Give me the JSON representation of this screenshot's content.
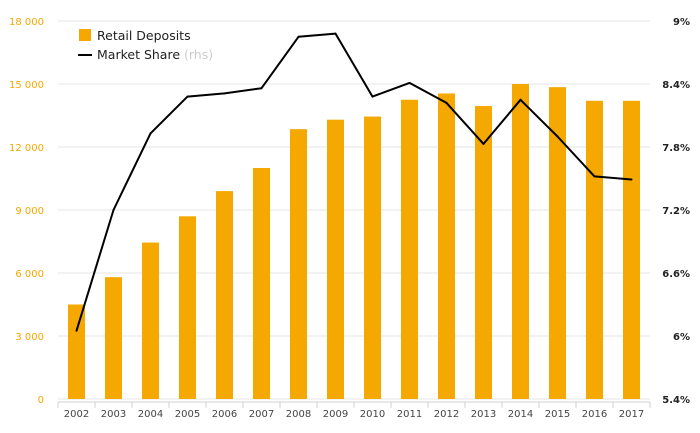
{
  "chart_data": {
    "type": "bar",
    "categories": [
      "2002",
      "2003",
      "2004",
      "2005",
      "2006",
      "2007",
      "2008",
      "2009",
      "2010",
      "2011",
      "2012",
      "2013",
      "2014",
      "2015",
      "2016",
      "2017"
    ],
    "series": [
      {
        "name": "Retail Deposits",
        "type": "bar",
        "axis": "left",
        "color": "#f5a800",
        "values": [
          4500,
          5800,
          7450,
          8700,
          9900,
          11000,
          12850,
          13300,
          13450,
          14250,
          14550,
          13950,
          15000,
          14850,
          14200,
          14200
        ]
      },
      {
        "name": "Market Share",
        "name_suffix": "(rhs)",
        "type": "line",
        "axis": "right",
        "color": "#000000",
        "values": [
          6.05,
          7.2,
          7.93,
          8.28,
          8.31,
          8.36,
          8.85,
          8.88,
          8.28,
          8.41,
          8.22,
          7.83,
          8.25,
          7.9,
          7.52,
          7.49
        ]
      }
    ],
    "y_left": {
      "min": 0,
      "max": 18000,
      "ticks": [
        "0",
        "3 000",
        "6 000",
        "9 000",
        "12 000",
        "15 000",
        "18 000"
      ]
    },
    "y_right": {
      "min": 5.4,
      "max": 9.0,
      "ticks": [
        "5.4%",
        "6%",
        "6.6%",
        "7.2%",
        "7.8%",
        "8.4%",
        "9%"
      ]
    },
    "legend_position": "top-left",
    "grid": "horizontal"
  }
}
